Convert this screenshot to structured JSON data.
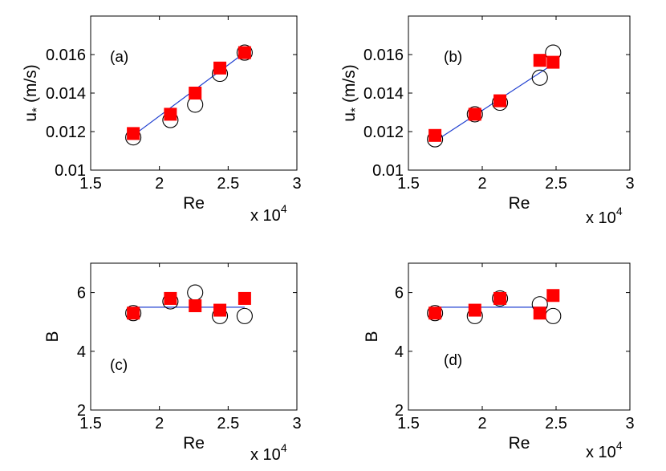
{
  "chart_data": [
    {
      "type": "scatter",
      "panel_label": "(a)",
      "xlabel": "Re",
      "x_multiplier": "x 10",
      "x_exponent": "4",
      "ylabel_main": "u",
      "ylabel_sub": "*",
      "ylabel_unit": "(m/s)",
      "xlim": [
        1.5,
        3
      ],
      "ylim": [
        0.01,
        0.018
      ],
      "xticks": [
        1.5,
        2,
        2.5,
        3
      ],
      "xtick_labels": [
        "1.5",
        "2",
        "2.5",
        "3"
      ],
      "yticks": [
        0.01,
        0.012,
        0.014,
        0.016
      ],
      "ytick_labels": [
        "0.01",
        "0.012",
        "0.014",
        "0.016"
      ],
      "series": [
        {
          "name": "circles",
          "marker": "open-circle",
          "x": [
            1.81,
            2.08,
            2.26,
            2.44,
            2.62
          ],
          "y": [
            0.0117,
            0.0126,
            0.0134,
            0.015,
            0.0161
          ]
        },
        {
          "name": "squares",
          "marker": "filled-square",
          "color": "#ff0000",
          "x": [
            1.81,
            2.08,
            2.26,
            2.44,
            2.62
          ],
          "y": [
            0.0119,
            0.0129,
            0.014,
            0.0153,
            0.0161
          ]
        },
        {
          "name": "fit",
          "marker": "line",
          "color": "#1f3fd0",
          "x": [
            1.81,
            2.62
          ],
          "y": [
            0.0118,
            0.0161
          ]
        }
      ]
    },
    {
      "type": "scatter",
      "panel_label": "(b)",
      "xlabel": "Re",
      "x_multiplier": "x 10",
      "x_exponent": "4",
      "ylabel_main": "u",
      "ylabel_sub": "*",
      "ylabel_unit": "(m/s)",
      "xlim": [
        1.5,
        3
      ],
      "ylim": [
        0.01,
        0.018
      ],
      "xticks": [
        1.5,
        2,
        2.5,
        3
      ],
      "xtick_labels": [
        "1.5",
        "2",
        "2.5",
        "3"
      ],
      "yticks": [
        0.01,
        0.012,
        0.014,
        0.016
      ],
      "ytick_labels": [
        "0.01",
        "0.012",
        "0.014",
        "0.016"
      ],
      "series": [
        {
          "name": "circles",
          "marker": "open-circle",
          "x": [
            1.68,
            1.95,
            2.12,
            2.39,
            2.48
          ],
          "y": [
            0.0116,
            0.0129,
            0.0135,
            0.0148,
            0.0161
          ]
        },
        {
          "name": "squares",
          "marker": "filled-square",
          "color": "#ff0000",
          "x": [
            1.68,
            1.95,
            2.12,
            2.39,
            2.48
          ],
          "y": [
            0.0118,
            0.0129,
            0.0136,
            0.0157,
            0.0156
          ]
        },
        {
          "name": "fit",
          "marker": "line",
          "color": "#1f3fd0",
          "x": [
            1.68,
            2.44
          ],
          "y": [
            0.0115,
            0.0153
          ]
        }
      ]
    },
    {
      "type": "scatter",
      "panel_label": "(c)",
      "xlabel": "Re",
      "x_multiplier": "x 10",
      "x_exponent": "4",
      "ylabel_main": "B",
      "xlim": [
        1.5,
        3
      ],
      "ylim": [
        2,
        7
      ],
      "xticks": [
        1.5,
        2,
        2.5,
        3
      ],
      "xtick_labels": [
        "1.5",
        "2",
        "2.5",
        "3"
      ],
      "yticks": [
        2,
        4,
        6
      ],
      "ytick_labels": [
        "2",
        "4",
        "6"
      ],
      "series": [
        {
          "name": "circles",
          "marker": "open-circle",
          "x": [
            1.81,
            2.08,
            2.26,
            2.44,
            2.62
          ],
          "y": [
            5.3,
            5.7,
            6.0,
            5.2,
            5.2
          ]
        },
        {
          "name": "squares",
          "marker": "filled-square",
          "color": "#ff0000",
          "x": [
            1.81,
            2.08,
            2.26,
            2.44,
            2.62
          ],
          "y": [
            5.3,
            5.8,
            5.55,
            5.4,
            5.8
          ]
        },
        {
          "name": "fit",
          "marker": "line",
          "color": "#1f3fd0",
          "x": [
            1.81,
            2.62
          ],
          "y": [
            5.5,
            5.5
          ]
        }
      ]
    },
    {
      "type": "scatter",
      "panel_label": "(d)",
      "xlabel": "Re",
      "x_multiplier": "x 10",
      "x_exponent": "4",
      "ylabel_main": "B",
      "xlim": [
        1.5,
        3
      ],
      "ylim": [
        2,
        7
      ],
      "xticks": [
        1.5,
        2,
        2.5,
        3
      ],
      "xtick_labels": [
        "1.5",
        "2",
        "2.5",
        "3"
      ],
      "yticks": [
        2,
        4,
        6
      ],
      "ytick_labels": [
        "2",
        "4",
        "6"
      ],
      "series": [
        {
          "name": "circles",
          "marker": "open-circle",
          "x": [
            1.68,
            1.95,
            2.12,
            2.39,
            2.48
          ],
          "y": [
            5.3,
            5.2,
            5.8,
            5.6,
            5.2
          ]
        },
        {
          "name": "squares",
          "marker": "filled-square",
          "color": "#ff0000",
          "x": [
            1.68,
            1.95,
            2.12,
            2.39,
            2.48
          ],
          "y": [
            5.3,
            5.4,
            5.8,
            5.3,
            5.9
          ]
        },
        {
          "name": "fit",
          "marker": "line",
          "color": "#1f3fd0",
          "x": [
            1.68,
            2.44
          ],
          "y": [
            5.5,
            5.5
          ]
        }
      ]
    }
  ]
}
